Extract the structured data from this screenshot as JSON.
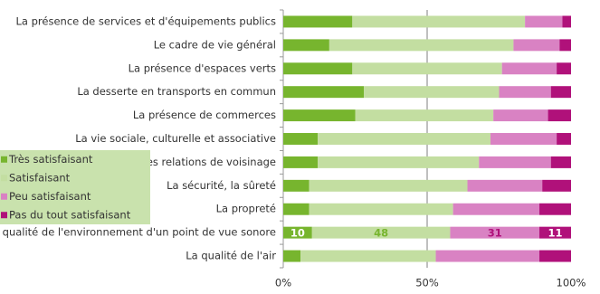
{
  "chart_data": {
    "type": "stacked-bar-horizontal",
    "categories": [
      "La présence de services et d'équipements publics",
      "Le cadre de vie général",
      "La présence d'espaces verts",
      "La desserte en transports en commun",
      "La présence de commerces",
      "La vie sociale, culturelle et associative",
      "Les relations de voisinage",
      "La sécurité, la sûreté",
      "La propreté",
      "La qualité de l'environnement d'un point de vue sonore",
      "La qualité de l'air"
    ],
    "series": [
      {
        "name": "Très satisfaisant",
        "color": "#77b52e",
        "values": [
          24,
          16,
          24,
          28,
          25,
          12,
          12,
          9,
          9,
          10,
          6
        ],
        "value_labels": [
          null,
          null,
          null,
          null,
          null,
          null,
          null,
          null,
          null,
          "10",
          null
        ]
      },
      {
        "name": "Satisfaisant",
        "color": "#c3dea1",
        "values": [
          60,
          64,
          52,
          47,
          48,
          60,
          56,
          55,
          50,
          48,
          47
        ],
        "value_labels": [
          null,
          null,
          null,
          null,
          null,
          null,
          null,
          null,
          null,
          "48",
          null
        ]
      },
      {
        "name": "Peu satisfaisant",
        "color": "#d982c3",
        "values": [
          13,
          16,
          19,
          18,
          19,
          23,
          25,
          26,
          30,
          31,
          36
        ],
        "value_labels": [
          null,
          null,
          null,
          null,
          null,
          null,
          null,
          null,
          null,
          "31",
          null
        ]
      },
      {
        "name": "Pas du tout satisfaisant",
        "color": "#b0117a",
        "values": [
          3,
          4,
          5,
          7,
          8,
          5,
          7,
          10,
          11,
          11,
          11
        ],
        "value_labels": [
          null,
          null,
          null,
          null,
          null,
          null,
          null,
          null,
          null,
          "11",
          null
        ]
      }
    ],
    "xlim": [
      0,
      100
    ],
    "xticks": [
      {
        "value": 0,
        "label": "0%"
      },
      {
        "value": 50,
        "label": "50%"
      },
      {
        "value": 100,
        "label": "100%"
      }
    ],
    "legend": "left"
  }
}
